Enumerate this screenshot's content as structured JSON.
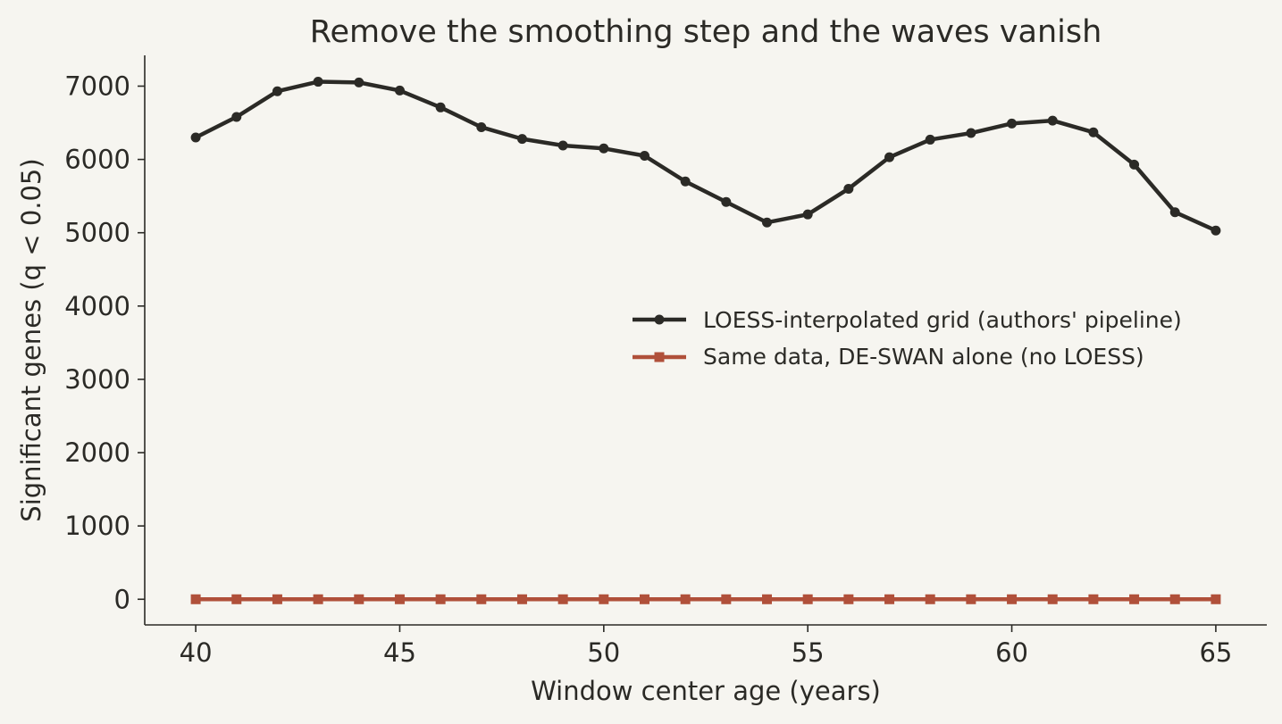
{
  "chart_data": {
    "type": "line",
    "title": "Remove the smoothing step and the waves vanish",
    "xlabel": "Window center age (years)",
    "ylabel": "Significant genes (q < 0.05)",
    "xlim": [
      38.75,
      66.25
    ],
    "ylim": [
      -350,
      7420
    ],
    "xticks": [
      40,
      45,
      50,
      55,
      60,
      65
    ],
    "yticks": [
      0,
      1000,
      2000,
      3000,
      4000,
      5000,
      6000,
      7000
    ],
    "grid": false,
    "legend_position": "center-right",
    "x": [
      40,
      41,
      42,
      43,
      44,
      45,
      46,
      47,
      48,
      49,
      50,
      51,
      52,
      53,
      54,
      55,
      56,
      57,
      58,
      59,
      60,
      61,
      62,
      63,
      64,
      65
    ],
    "series": [
      {
        "name": "LOESS-interpolated grid (authors' pipeline)",
        "color": "#2b2a26",
        "marker": "circle",
        "values": [
          6300,
          6580,
          6930,
          7060,
          7050,
          6940,
          6710,
          6440,
          6280,
          6190,
          6150,
          6050,
          5700,
          5420,
          5140,
          5250,
          5600,
          6030,
          6270,
          6360,
          6490,
          6530,
          6370,
          5930,
          5280,
          5030
        ]
      },
      {
        "name": "Same data, DE-SWAN alone (no LOESS)",
        "color": "#b0503a",
        "marker": "square",
        "values": [
          0,
          0,
          0,
          0,
          0,
          0,
          0,
          0,
          0,
          0,
          0,
          0,
          0,
          0,
          0,
          0,
          0,
          0,
          0,
          0,
          0,
          0,
          0,
          0,
          0,
          0
        ]
      }
    ]
  }
}
